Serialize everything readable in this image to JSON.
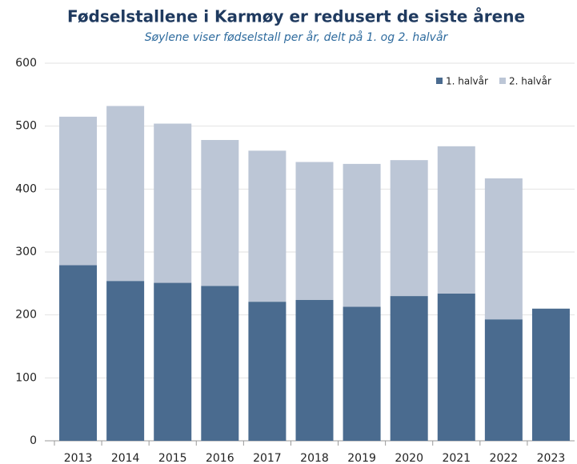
{
  "chart_data": {
    "type": "stacked_bar",
    "title": "Fødselstallene i Karmøy er redusert de siste årene",
    "subtitle": "Søylene viser fødselstall per år, delt på 1. og 2. halvår",
    "categories": [
      "2013",
      "2014",
      "2015",
      "2016",
      "2017",
      "2018",
      "2019",
      "2020",
      "2021",
      "2022",
      "2023"
    ],
    "series": [
      {
        "name": "1. halvår",
        "color": "#4a6b8f",
        "values": [
          279,
          254,
          251,
          246,
          221,
          224,
          213,
          230,
          234,
          193,
          210
        ]
      },
      {
        "name": "2. halvår",
        "color": "#bcc6d6",
        "values": [
          236,
          278,
          253,
          232,
          240,
          219,
          227,
          216,
          234,
          224,
          null
        ]
      }
    ],
    "ylim": [
      0,
      600
    ],
    "yticks": [
      0,
      100,
      200,
      300,
      400,
      500,
      600
    ],
    "grid": true,
    "legend": "top-right"
  }
}
